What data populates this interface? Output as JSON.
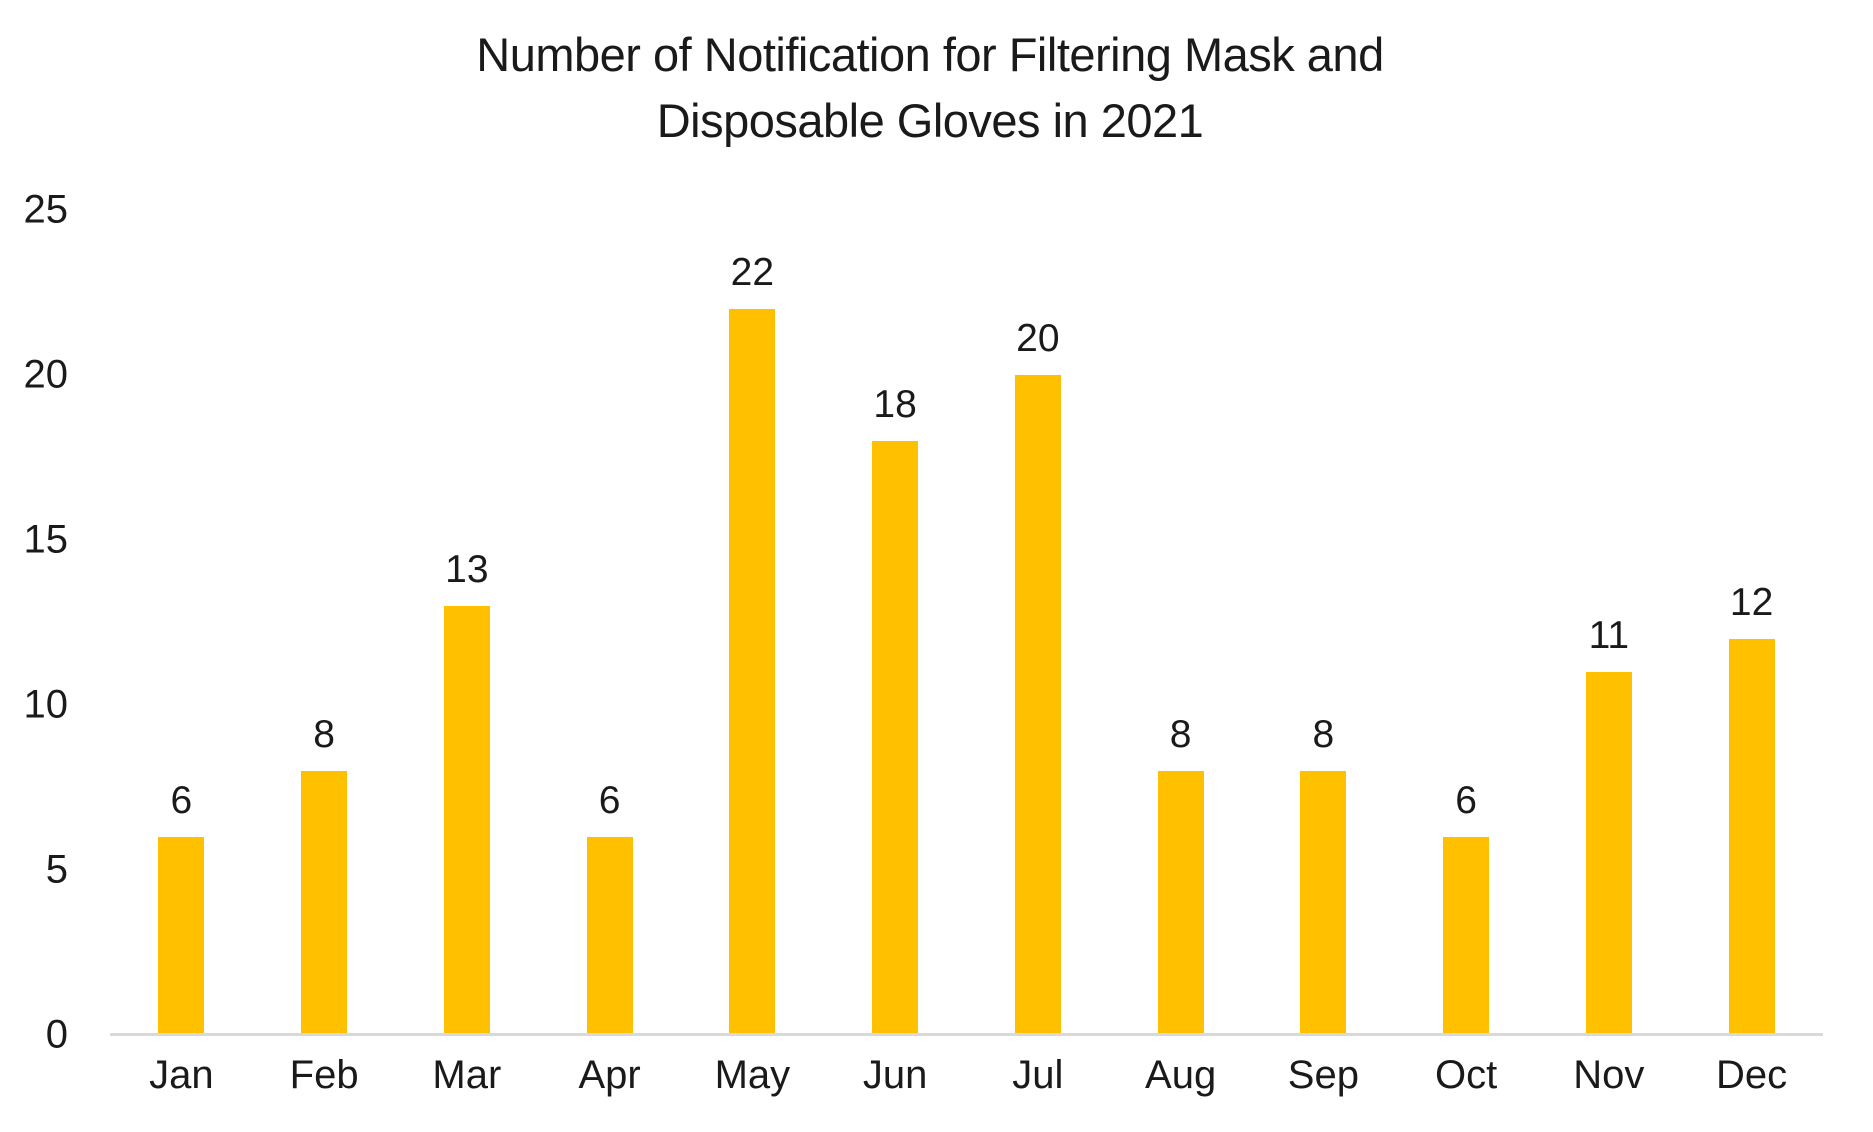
{
  "title": {
    "line1": "Number of Notification for Filtering Mask and",
    "line2": "Disposable Gloves in 2021"
  },
  "colors": {
    "bar": "#FFC000",
    "axis_line": "#D9D9D9",
    "text": "#1A1A1A",
    "background": "#FFFFFF"
  },
  "chart_data": {
    "type": "bar",
    "title": "Number of Notification for Filtering Mask and Disposable Gloves in 2021",
    "categories": [
      "Jan",
      "Feb",
      "Mar",
      "Apr",
      "May",
      "Jun",
      "Jul",
      "Aug",
      "Sep",
      "Oct",
      "Nov",
      "Dec"
    ],
    "values": [
      6,
      8,
      13,
      6,
      22,
      18,
      20,
      8,
      8,
      6,
      11,
      12
    ],
    "data_labels_shown": true,
    "xlabel": "",
    "ylabel": "",
    "ylim": [
      0,
      25
    ],
    "ytick_step": 5,
    "yticks": [
      0,
      5,
      10,
      15,
      20,
      25
    ],
    "grid": "off",
    "legend": "none",
    "bar_color": "#FFC000"
  }
}
